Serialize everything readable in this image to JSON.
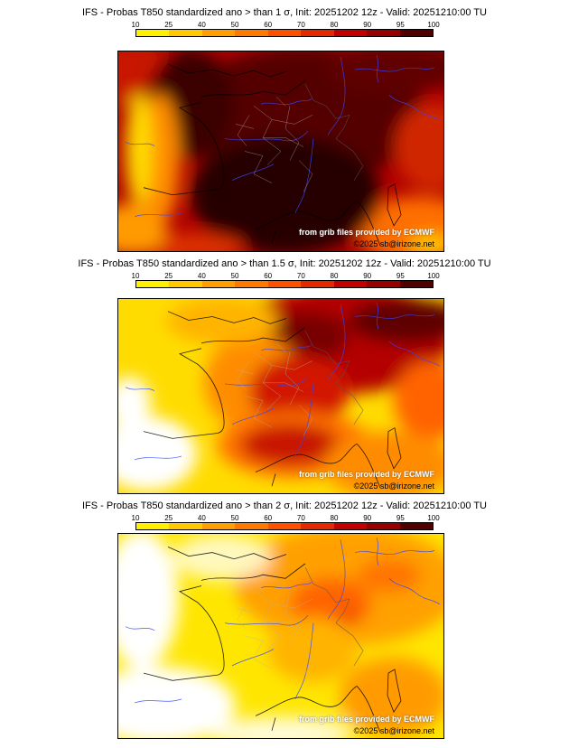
{
  "page": {
    "background": "#ffffff"
  },
  "colorbar": {
    "ticks": [
      "10",
      "25",
      "40",
      "50",
      "60",
      "70",
      "80",
      "90",
      "95",
      "100"
    ],
    "colors": [
      "#fff000",
      "#ffc800",
      "#ffa000",
      "#ff7800",
      "#ff5000",
      "#e62800",
      "#c30000",
      "#960000",
      "#500000"
    ]
  },
  "credit": {
    "source_line": "from grib files provided by ECMWF",
    "copyright_line": "©2025 sb@irizone.net"
  },
  "panels": [
    {
      "threshold_sigma": "1",
      "title": "IFS - Probas T850  standardized ano > than 1 σ, Init: 20251202 12z - Valid: 20251210:00 TU"
    },
    {
      "threshold_sigma": "1.5",
      "title": "IFS - Probas T850  standardized ano > than 1.5 σ, Init: 20251202 12z - Valid: 20251210:00 TU"
    },
    {
      "threshold_sigma": "2",
      "title": "IFS - Probas T850  standardized ano > than 2 σ, Init: 20251202 12z - Valid: 20251210:00 TU"
    }
  ]
}
